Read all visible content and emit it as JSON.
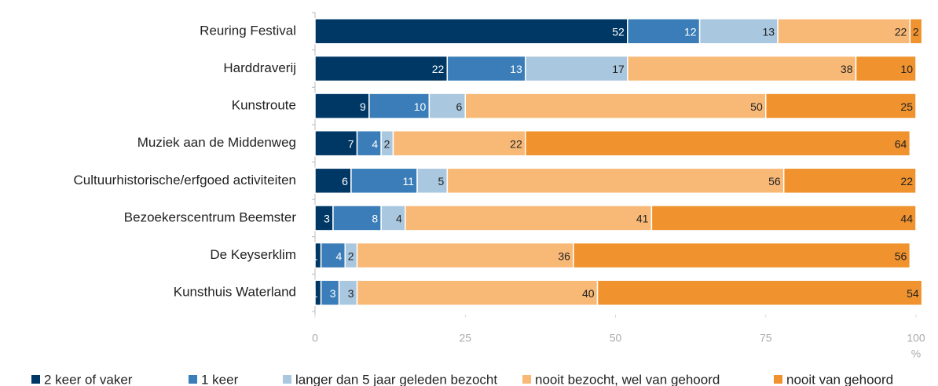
{
  "chart_data": {
    "type": "stacked_barh",
    "categories": [
      "Reuring Festival",
      "Harddraverij",
      "Kunstroute",
      "Muziek aan de Middenweg",
      "Cultuurhistorische/erfgoed activiteiten",
      "Bezoekerscentrum Beemster",
      "De Keyserklim",
      "Kunsthuis Waterland"
    ],
    "series": [
      {
        "name": "2 keer of vaker",
        "color": "#003865",
        "values": [
          52,
          22,
          9,
          7,
          6,
          3,
          1,
          1
        ]
      },
      {
        "name": "1 keer",
        "color": "#3a7db8",
        "values": [
          12,
          13,
          10,
          4,
          11,
          8,
          4,
          3
        ]
      },
      {
        "name": "langer dan 5 jaar geleden bezocht",
        "color": "#a9c7df",
        "values": [
          13,
          17,
          6,
          2,
          5,
          4,
          2,
          3
        ]
      },
      {
        "name": "nooit bezocht, wel van gehoord",
        "color": "#f8b977",
        "values": [
          22,
          38,
          50,
          22,
          56,
          41,
          36,
          40
        ]
      },
      {
        "name": "nooit van gehoord",
        "color": "#f0922e",
        "values": [
          2,
          10,
          25,
          64,
          22,
          44,
          56,
          54
        ]
      }
    ],
    "xlim": [
      0,
      100
    ],
    "xticks": [
      0,
      25,
      50,
      75,
      100
    ],
    "xlabel": "%",
    "legend": "bottom"
  }
}
